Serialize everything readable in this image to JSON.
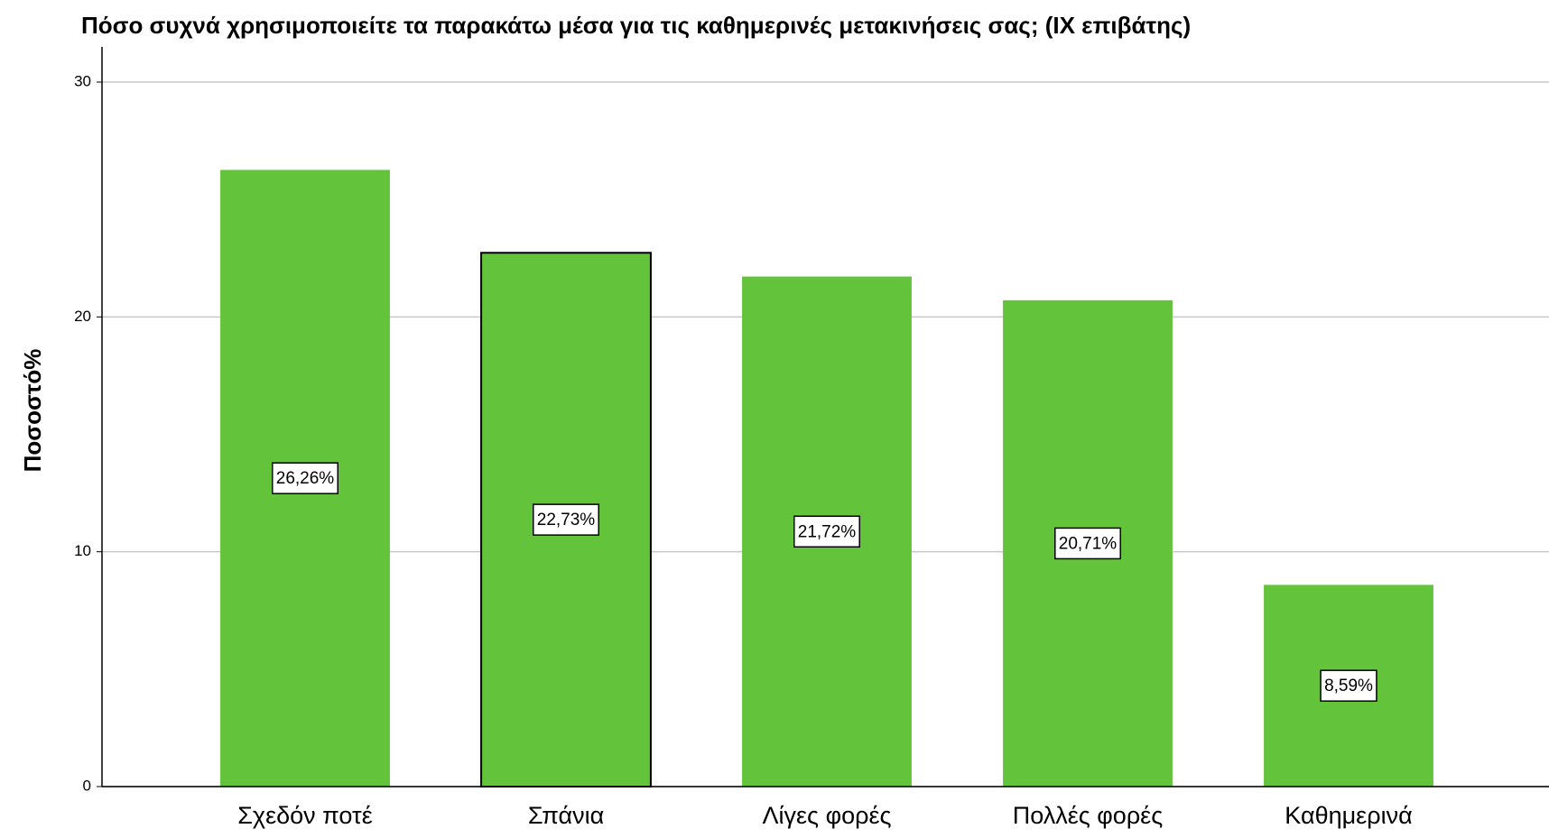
{
  "chart_data": {
    "type": "bar",
    "title": "Πόσο συχνά χρησιμοποιείτε τα παρακάτω μέσα για τις καθημερινές μετακινήσεις σας; (IX επιβάτης)",
    "y_label": "Ποσοστό%",
    "categories": [
      "Σχεδόν ποτέ",
      "Σπάνια",
      "Λίγες φορές",
      "Πολλές φορές",
      "Καθημερινά"
    ],
    "values": [
      26.26,
      22.73,
      21.72,
      20.71,
      8.59
    ],
    "value_labels": [
      "26,26%",
      "22,73%",
      "21,72%",
      "20,71%",
      "8,59%"
    ],
    "color": "#63c33a",
    "highlighted": 1,
    "ylim": [
      0,
      30
    ],
    "yticks": [
      0,
      10,
      20,
      30
    ],
    "grid": true
  }
}
